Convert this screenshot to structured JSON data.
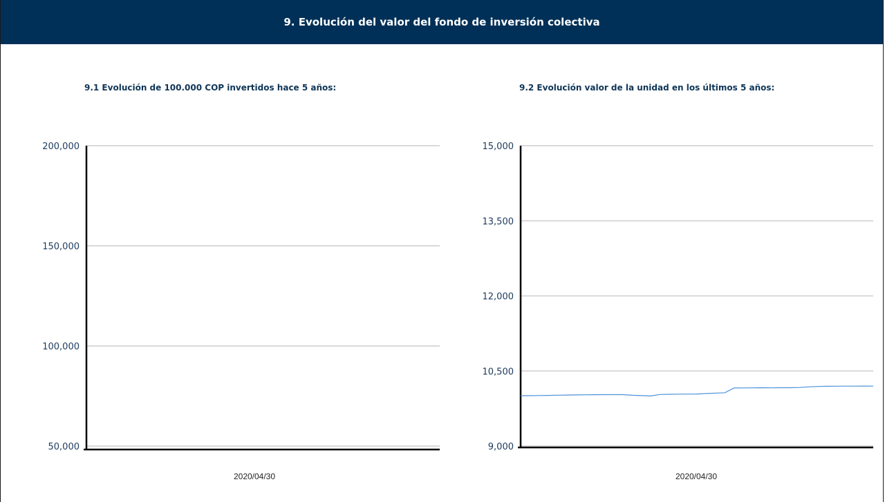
{
  "header": {
    "title": "9. Evolución del valor del fondo de inversión colectiva",
    "background": "#003057"
  },
  "chart_data": [
    {
      "type": "line",
      "title": "9.1 Evolución de 100.000 COP invertidos hace 5 años:",
      "xlabel": "",
      "ylabel": "",
      "ylim": [
        50000,
        200000
      ],
      "y_ticks": [
        "200,000",
        "150,000",
        "100,000",
        "50,000"
      ],
      "y_tick_values": [
        200000,
        150000,
        100000,
        50000
      ],
      "x_tick_labels": [
        "2020/04/30"
      ],
      "grid": true,
      "series": []
    },
    {
      "type": "line",
      "title": "9.2 Evolución valor de la unidad en los últimos 5 años:",
      "xlabel": "",
      "ylabel": "",
      "ylim": [
        9000,
        15000
      ],
      "y_ticks": [
        "15,000",
        "13,500",
        "12,000",
        "10,500",
        "9,000"
      ],
      "y_tick_values": [
        15000,
        13500,
        12000,
        10500,
        9000
      ],
      "x_tick_labels": [
        "2020/04/30"
      ],
      "grid": true,
      "series": [
        {
          "color": "#4a90d9",
          "values": [
            10005,
            10007,
            10010,
            10013,
            10016,
            10019,
            10022,
            10025,
            10026,
            10027,
            10027,
            10027,
            10015,
            10008,
            10000,
            10030,
            10035,
            10037,
            10038,
            10040,
            10050,
            10058,
            10065,
            10160,
            10162,
            10163,
            10165,
            10163,
            10165,
            10166,
            10170,
            10182,
            10190,
            10194,
            10196,
            10197,
            10197,
            10198,
            10197
          ]
        }
      ]
    }
  ]
}
